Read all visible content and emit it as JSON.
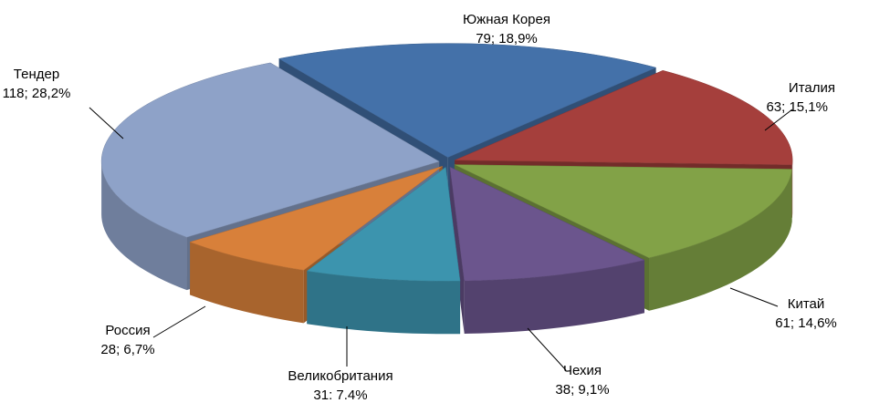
{
  "chart_data": {
    "type": "pie3d",
    "categories": [
      "Южная Корея",
      "Италия",
      "Китай",
      "Чехия",
      "Великобритания",
      "Россия",
      "Тендер"
    ],
    "values": [
      79,
      63,
      61,
      38,
      31,
      28,
      118
    ],
    "value_labels": [
      "79; 18,9%",
      "63; 15,1%",
      "61; 14,6%",
      "38; 9,1%",
      "31: 7.4%",
      "28; 6,7%",
      "118; 28,2%"
    ],
    "colors": [
      "#4471a9",
      "#a53f3c",
      "#82a247",
      "#6b558d",
      "#3c94ae",
      "#d8803a",
      "#8ea2c8"
    ]
  }
}
